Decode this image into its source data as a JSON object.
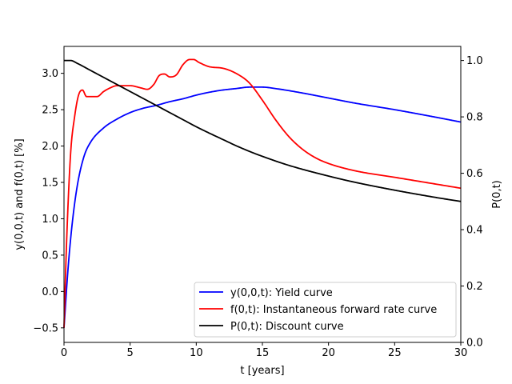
{
  "chart_data": {
    "type": "line",
    "xlabel": "t [years]",
    "ylabel_left": "y(0,0,t) and f(0,t) [%]",
    "ylabel_right": "P(0,t)",
    "xlim": [
      0,
      30
    ],
    "ylim_left": [
      -0.7,
      3.37
    ],
    "ylim_right": [
      0.0,
      1.05
    ],
    "x_ticks": [
      0,
      5,
      10,
      15,
      20,
      25,
      30
    ],
    "x_tick_labels": [
      "0",
      "5",
      "10",
      "15",
      "20",
      "25",
      "30"
    ],
    "y_left_ticks": [
      -0.5,
      0.0,
      0.5,
      1.0,
      1.5,
      2.0,
      2.5,
      3.0
    ],
    "y_left_tick_labels": [
      "−0.5",
      "0.0",
      "0.5",
      "1.0",
      "1.5",
      "2.0",
      "2.5",
      "3.0"
    ],
    "y_right_ticks": [
      0.0,
      0.2,
      0.4,
      0.6,
      0.8,
      1.0
    ],
    "y_right_tick_labels": [
      "0.0",
      "0.2",
      "0.4",
      "0.6",
      "0.8",
      "1.0"
    ],
    "grid": false,
    "legend_position": "bottom-right",
    "series": [
      {
        "name": "y(0,0,t): Yield curve",
        "color": "#0000ff",
        "axis": "left",
        "x": [
          0,
          0.3,
          0.6,
          1.0,
          1.5,
          2.0,
          3.0,
          4.0,
          5.0,
          6.0,
          7.0,
          8.0,
          9.0,
          10.0,
          11.0,
          12.0,
          13.0,
          14.0,
          15.0,
          16.0,
          18.0,
          20.0,
          22.0,
          25.0,
          28.0,
          30.0
        ],
        "y": [
          -0.5,
          0.3,
          0.9,
          1.45,
          1.85,
          2.05,
          2.25,
          2.37,
          2.46,
          2.52,
          2.56,
          2.61,
          2.65,
          2.7,
          2.74,
          2.77,
          2.79,
          2.81,
          2.81,
          2.79,
          2.73,
          2.66,
          2.59,
          2.5,
          2.4,
          2.33
        ]
      },
      {
        "name": "f(0,t): Instantaneous forward rate curve",
        "color": "#ff0000",
        "axis": "left",
        "x": [
          0,
          0.2,
          0.5,
          0.8,
          1.1,
          1.4,
          1.7,
          2.0,
          2.5,
          3.0,
          3.5,
          4.0,
          5.0,
          5.8,
          6.3,
          6.8,
          7.2,
          7.6,
          8.0,
          8.5,
          9.0,
          9.5,
          9.8,
          10.2,
          11.0,
          12.0,
          13.0,
          14.0,
          15.0,
          16.0,
          17.0,
          18.0,
          19.0,
          20.0,
          22.0,
          25.0,
          28.0,
          30.0
        ],
        "y": [
          -0.5,
          0.7,
          1.9,
          2.4,
          2.7,
          2.77,
          2.68,
          2.68,
          2.68,
          2.75,
          2.8,
          2.83,
          2.83,
          2.8,
          2.78,
          2.85,
          2.97,
          2.99,
          2.95,
          2.98,
          3.12,
          3.19,
          3.19,
          3.15,
          3.09,
          3.07,
          3.0,
          2.87,
          2.63,
          2.36,
          2.13,
          1.96,
          1.84,
          1.76,
          1.66,
          1.57,
          1.48,
          1.42
        ]
      },
      {
        "name": "P(0,t): Discount curve",
        "color": "#000000",
        "axis": "right",
        "x": [
          0,
          0.5,
          1.0,
          2.0,
          3.0,
          4.0,
          5.0,
          6.0,
          7.0,
          8.0,
          9.0,
          10.0,
          11.0,
          12.0,
          13.0,
          14.0,
          15.0,
          17.0,
          20.0,
          22.0,
          25.0,
          28.0,
          30.0
        ],
        "y": [
          1.0,
          1.0,
          0.99,
          0.965,
          0.94,
          0.915,
          0.89,
          0.865,
          0.84,
          0.815,
          0.79,
          0.765,
          0.742,
          0.72,
          0.698,
          0.678,
          0.66,
          0.628,
          0.59,
          0.568,
          0.54,
          0.515,
          0.5
        ]
      }
    ]
  }
}
